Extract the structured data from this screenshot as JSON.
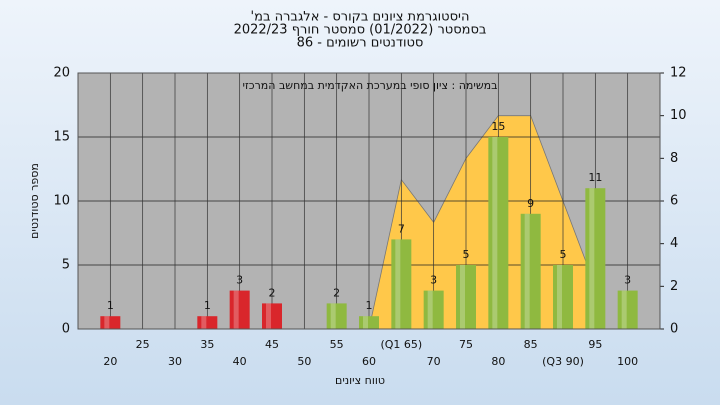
{
  "chart_data": {
    "type": "bar",
    "title": [
      "היסטוגרמת ציונים בקורס - אלגברה במ'",
      "בסמסטר (01/2022) סמסטר חורף 2022/23",
      "סטודנטים רשומים - 86"
    ],
    "annotation": "במשימה : ציון סופי במערכת האקדמית במחשב המרכזי",
    "x_label": "טווח ציונים",
    "y_label": "מספר סטודנטים",
    "x": [
      20,
      25,
      30,
      35,
      40,
      45,
      50,
      55,
      60,
      65,
      70,
      75,
      80,
      85,
      90,
      95,
      100
    ],
    "values": [
      1,
      0,
      0,
      1,
      3,
      2,
      0,
      2,
      1,
      7,
      3,
      5,
      15,
      9,
      5,
      11,
      3
    ],
    "colors": [
      "#d9262b",
      "#d9262b",
      "#d9262b",
      "#d9262b",
      "#d9262b",
      "#d9262b",
      "#8fb940",
      "#8fb940",
      "#8fb940",
      "#8fb940",
      "#8fb940",
      "#8fb940",
      "#8fb940",
      "#8fb940",
      "#8fb940",
      "#8fb940",
      "#8fb940"
    ],
    "area": {
      "axis": "y2",
      "color": "#ffc84a",
      "x": [
        60,
        65,
        70,
        75,
        80,
        85,
        95
      ],
      "values": [
        0,
        7,
        5,
        8,
        10,
        10,
        2
      ]
    },
    "xlim": [
      15,
      105
    ],
    "xticks": [
      20,
      25,
      30,
      35,
      40,
      45,
      50,
      55,
      60,
      {
        "value": 65,
        "label": "(Q1 65)"
      },
      70,
      75,
      80,
      85,
      {
        "value": 90,
        "label": "(Q3 90)"
      },
      95,
      100
    ],
    "ylim": [
      0,
      20
    ],
    "yticks": [
      0,
      5,
      10,
      15,
      20
    ],
    "y2lim": [
      0,
      12
    ],
    "y2ticks": [
      0,
      2,
      4,
      6,
      8,
      10,
      12
    ],
    "grid": true
  }
}
